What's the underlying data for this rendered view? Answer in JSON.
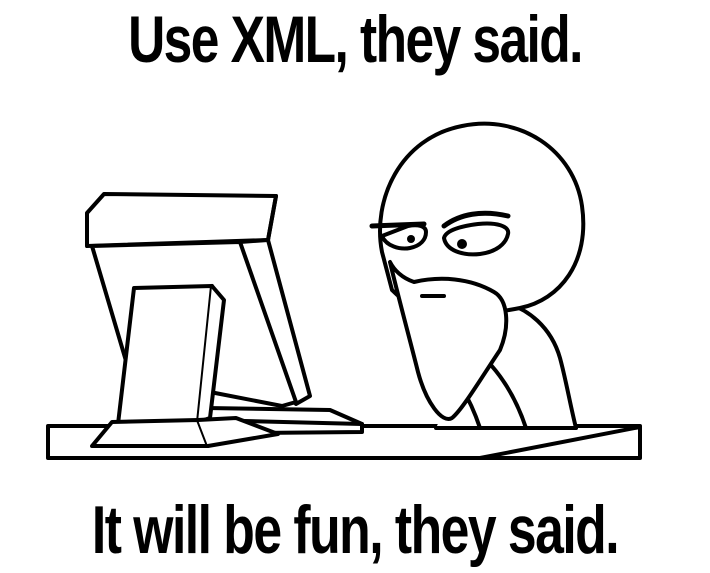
{
  "meme": {
    "top_text": "Use XML, they said.",
    "bottom_text": "It will be fun, they said."
  },
  "colors": {
    "background": "#ffffff",
    "ink": "#000000"
  }
}
